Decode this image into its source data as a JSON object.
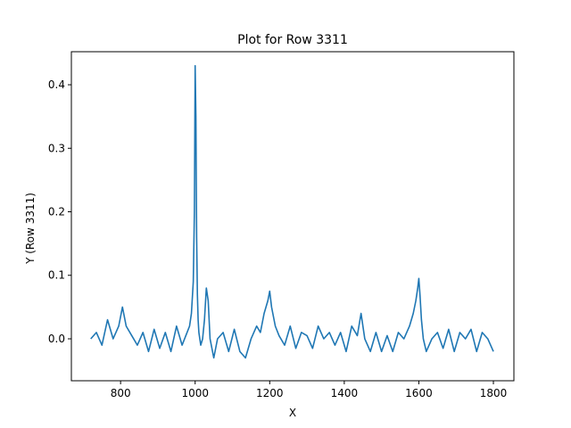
{
  "chart_data": {
    "type": "line",
    "title": "Plot for Row 3311",
    "xlabel": "X",
    "ylabel": "Y (Row 3311)",
    "xlim": [
      668,
      1855
    ],
    "ylim": [
      -0.066,
      0.452
    ],
    "xticks": [
      800,
      1000,
      1200,
      1400,
      1600,
      1800
    ],
    "yticks": [
      0.0,
      0.1,
      0.2,
      0.3,
      0.4
    ],
    "ytick_labels": [
      "0.0",
      "0.1",
      "0.2",
      "0.3",
      "0.4"
    ],
    "grid": false,
    "legend": "none",
    "series": [
      {
        "color": "#1f77b4",
        "x": [
          720,
          735,
          750,
          765,
          780,
          795,
          805,
          815,
          830,
          845,
          860,
          875,
          890,
          905,
          920,
          935,
          950,
          965,
          975,
          985,
          990,
          995,
          998,
          1000,
          1002,
          1004,
          1006,
          1008,
          1010,
          1015,
          1020,
          1025,
          1030,
          1035,
          1040,
          1050,
          1060,
          1075,
          1090,
          1105,
          1120,
          1135,
          1150,
          1165,
          1175,
          1185,
          1195,
          1200,
          1205,
          1215,
          1225,
          1240,
          1255,
          1270,
          1285,
          1300,
          1315,
          1330,
          1345,
          1360,
          1375,
          1390,
          1405,
          1420,
          1435,
          1445,
          1455,
          1470,
          1485,
          1500,
          1515,
          1530,
          1545,
          1560,
          1575,
          1585,
          1592,
          1597,
          1600,
          1603,
          1607,
          1612,
          1620,
          1635,
          1650,
          1665,
          1680,
          1695,
          1710,
          1725,
          1740,
          1755,
          1770,
          1785,
          1800
        ],
        "y": [
          0.0,
          0.01,
          -0.01,
          0.03,
          0.0,
          0.02,
          0.05,
          0.02,
          0.005,
          -0.01,
          0.01,
          -0.02,
          0.015,
          -0.015,
          0.01,
          -0.02,
          0.02,
          -0.01,
          0.005,
          0.02,
          0.04,
          0.09,
          0.2,
          0.43,
          0.35,
          0.16,
          0.07,
          0.03,
          0.01,
          -0.01,
          0.0,
          0.03,
          0.08,
          0.06,
          0.0,
          -0.03,
          0.0,
          0.01,
          -0.02,
          0.015,
          -0.02,
          -0.03,
          0.0,
          0.02,
          0.01,
          0.04,
          0.06,
          0.075,
          0.05,
          0.02,
          0.005,
          -0.01,
          0.02,
          -0.015,
          0.01,
          0.005,
          -0.015,
          0.02,
          0.0,
          0.01,
          -0.01,
          0.01,
          -0.02,
          0.02,
          0.005,
          0.04,
          0.0,
          -0.02,
          0.01,
          -0.02,
          0.005,
          -0.02,
          0.01,
          0.0,
          0.02,
          0.04,
          0.06,
          0.08,
          0.095,
          0.07,
          0.03,
          0.0,
          -0.02,
          0.0,
          0.01,
          -0.015,
          0.015,
          -0.02,
          0.01,
          0.0,
          0.015,
          -0.02,
          0.01,
          0.0,
          -0.02
        ]
      }
    ]
  }
}
